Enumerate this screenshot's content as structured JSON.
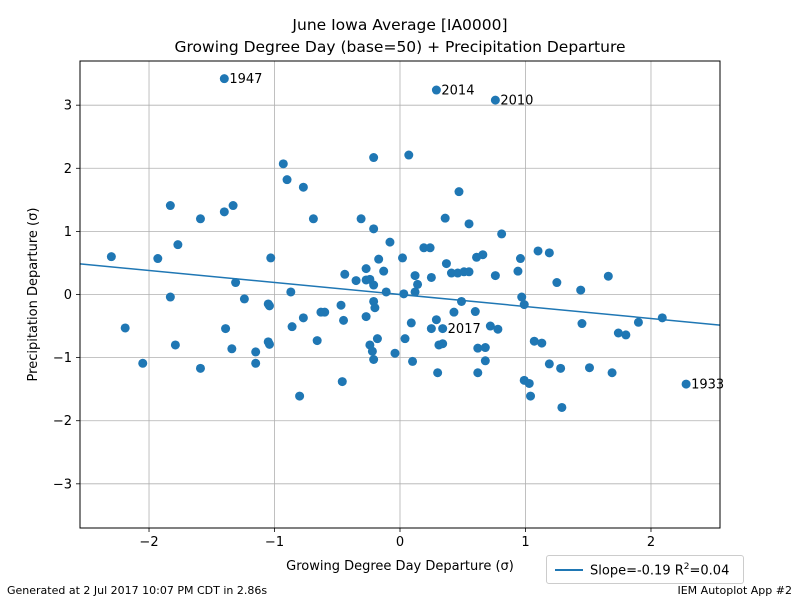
{
  "chart_data": {
    "type": "scatter",
    "title": "June Iowa Average [IA0000]",
    "subtitle": "Growing Degree Day (base=50) + Precipitation Departure",
    "xlabel": "Growing Degree Day Departure (σ)",
    "ylabel": "Precipitation Departure (σ)",
    "xlim": [
      -2.55,
      2.55
    ],
    "ylim": [
      -3.7,
      3.7
    ],
    "xticks": [
      -2,
      -1,
      0,
      1,
      2
    ],
    "xtick_labels": [
      "−2",
      "−1",
      "0",
      "1",
      "2"
    ],
    "yticks": [
      -3,
      -2,
      -1,
      0,
      1,
      2,
      3
    ],
    "ytick_labels": [
      "−3",
      "−2",
      "−1",
      "0",
      "1",
      "2",
      "3"
    ],
    "grid": true,
    "marker_color": "#1f77b4",
    "line_color": "#1f77b4",
    "points": [
      [
        -1.4,
        3.42
      ],
      [
        0.29,
        3.24
      ],
      [
        0.76,
        3.08
      ],
      [
        -0.93,
        2.07
      ],
      [
        -0.21,
        2.17
      ],
      [
        0.07,
        2.21
      ],
      [
        -0.9,
        1.82
      ],
      [
        -0.77,
        1.7
      ],
      [
        0.47,
        1.63
      ],
      [
        -1.83,
        1.41
      ],
      [
        -1.33,
        1.41
      ],
      [
        -1.4,
        1.31
      ],
      [
        -1.59,
        1.2
      ],
      [
        -0.69,
        1.2
      ],
      [
        -0.31,
        1.2
      ],
      [
        0.36,
        1.21
      ],
      [
        0.55,
        1.12
      ],
      [
        -0.21,
        1.04
      ],
      [
        0.81,
        0.96
      ],
      [
        -1.77,
        0.79
      ],
      [
        -0.08,
        0.83
      ],
      [
        0.19,
        0.74
      ],
      [
        0.24,
        0.74
      ],
      [
        1.1,
        0.69
      ],
      [
        1.19,
        0.66
      ],
      [
        0.66,
        0.63
      ],
      [
        0.61,
        0.59
      ],
      [
        -2.3,
        0.6
      ],
      [
        -1.93,
        0.57
      ],
      [
        -1.03,
        0.58
      ],
      [
        -0.17,
        0.56
      ],
      [
        0.02,
        0.58
      ],
      [
        0.96,
        0.57
      ],
      [
        0.37,
        0.49
      ],
      [
        -0.27,
        0.41
      ],
      [
        0.41,
        0.34
      ],
      [
        0.46,
        0.34
      ],
      [
        0.51,
        0.36
      ],
      [
        -0.44,
        0.32
      ],
      [
        -0.13,
        0.37
      ],
      [
        0.12,
        0.3
      ],
      [
        0.55,
        0.36
      ],
      [
        0.76,
        0.3
      ],
      [
        0.94,
        0.37
      ],
      [
        1.66,
        0.29
      ],
      [
        0.25,
        0.27
      ],
      [
        -0.35,
        0.22
      ],
      [
        -0.27,
        0.23
      ],
      [
        -0.24,
        0.24
      ],
      [
        -0.21,
        0.15
      ],
      [
        0.14,
        0.16
      ],
      [
        1.25,
        0.19
      ],
      [
        -1.31,
        0.19
      ],
      [
        -0.87,
        0.04
      ],
      [
        -0.11,
        0.04
      ],
      [
        0.03,
        0.01
      ],
      [
        0.12,
        0.04
      ],
      [
        1.44,
        0.07
      ],
      [
        -1.83,
        -0.04
      ],
      [
        -1.24,
        -0.07
      ],
      [
        -0.21,
        -0.11
      ],
      [
        0.49,
        -0.11
      ],
      [
        0.97,
        -0.04
      ],
      [
        0.99,
        -0.16
      ],
      [
        -1.05,
        -0.15
      ],
      [
        -1.04,
        -0.18
      ],
      [
        -0.47,
        -0.17
      ],
      [
        -0.63,
        -0.28
      ],
      [
        -0.6,
        -0.28
      ],
      [
        0.6,
        -0.27
      ],
      [
        -0.77,
        -0.37
      ],
      [
        -0.45,
        -0.41
      ],
      [
        -0.27,
        -0.35
      ],
      [
        -0.2,
        -0.21
      ],
      [
        0.09,
        -0.45
      ],
      [
        0.43,
        -0.28
      ],
      [
        1.45,
        -0.46
      ],
      [
        2.09,
        -0.37
      ],
      [
        -2.19,
        -0.53
      ],
      [
        -1.39,
        -0.54
      ],
      [
        -0.86,
        -0.51
      ],
      [
        0.25,
        -0.54
      ],
      [
        0.34,
        -0.54
      ],
      [
        0.72,
        -0.5
      ],
      [
        0.78,
        -0.55
      ],
      [
        1.74,
        -0.61
      ],
      [
        1.8,
        -0.64
      ],
      [
        1.9,
        -0.44
      ],
      [
        -0.66,
        -0.73
      ],
      [
        -0.24,
        -0.8
      ],
      [
        -0.18,
        -0.7
      ],
      [
        0.04,
        -0.7
      ],
      [
        0.29,
        -0.4
      ],
      [
        -1.05,
        -0.75
      ],
      [
        -1.04,
        -0.79
      ],
      [
        0.31,
        -0.8
      ],
      [
        0.34,
        -0.78
      ],
      [
        1.07,
        -0.74
      ],
      [
        1.13,
        -0.77
      ],
      [
        -1.79,
        -0.8
      ],
      [
        -1.34,
        -0.86
      ],
      [
        -1.15,
        -0.91
      ],
      [
        -0.22,
        -0.9
      ],
      [
        0.62,
        -0.85
      ],
      [
        0.68,
        -0.84
      ],
      [
        -0.04,
        -0.93
      ],
      [
        -2.05,
        -1.09
      ],
      [
        -1.15,
        -1.09
      ],
      [
        -0.21,
        -1.03
      ],
      [
        0.1,
        -1.06
      ],
      [
        0.68,
        -1.05
      ],
      [
        1.19,
        -1.1
      ],
      [
        -1.59,
        -1.17
      ],
      [
        1.28,
        -1.17
      ],
      [
        1.51,
        -1.16
      ],
      [
        1.69,
        -1.24
      ],
      [
        0.3,
        -1.24
      ],
      [
        0.62,
        -1.24
      ],
      [
        -0.46,
        -1.38
      ],
      [
        0.99,
        -1.36
      ],
      [
        1.03,
        -1.41
      ],
      [
        2.28,
        -1.42
      ],
      [
        -0.8,
        -1.61
      ],
      [
        1.04,
        -1.61
      ],
      [
        1.29,
        -1.79
      ]
    ],
    "annotations": [
      {
        "label": "1947",
        "x": -1.4,
        "y": 3.42
      },
      {
        "label": "2014",
        "x": 0.29,
        "y": 3.24
      },
      {
        "label": "2010",
        "x": 0.76,
        "y": 3.08
      },
      {
        "label": "2017",
        "x": 0.34,
        "y": -0.54
      },
      {
        "label": "1933",
        "x": 2.28,
        "y": -1.42
      }
    ],
    "regression": {
      "slope": -0.19,
      "intercept": 0.0,
      "r2": 0.04
    },
    "legend": {
      "position": "below-right",
      "label_prefix": "Slope=-0.19 R",
      "label_sup": "2",
      "label_suffix": "=0.04"
    }
  },
  "footer": {
    "left": "Generated at 2 Jul 2017 10:07 PM CDT in 2.86s",
    "right": "IEM Autoplot App #2"
  }
}
